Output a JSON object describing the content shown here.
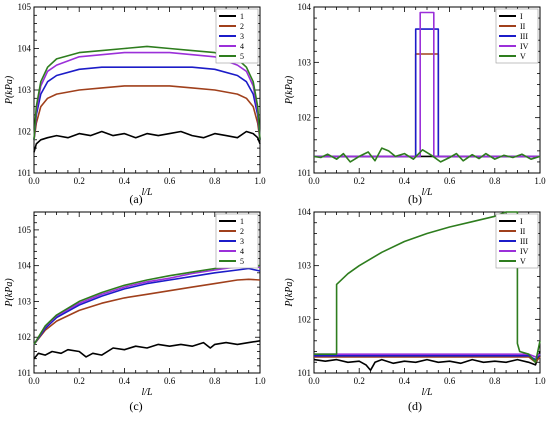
{
  "chart_data": [
    {
      "type": "line",
      "panel_label": "(a)",
      "xlabel": "l/L",
      "ylabel": "P(kPa)",
      "xlim": [
        0,
        1
      ],
      "ylim": [
        101,
        105
      ],
      "xticks": [
        "0.0",
        "0.2",
        "0.4",
        "0.6",
        "0.8",
        "1.0"
      ],
      "yticks": [
        "101",
        "102",
        "103",
        "104",
        "105"
      ],
      "legend_position": "top-right",
      "series": [
        {
          "name": "1",
          "color": "#000000",
          "x": [
            0,
            0.01,
            0.03,
            0.06,
            0.1,
            0.15,
            0.2,
            0.25,
            0.3,
            0.35,
            0.4,
            0.45,
            0.5,
            0.55,
            0.6,
            0.65,
            0.7,
            0.75,
            0.8,
            0.85,
            0.9,
            0.94,
            0.97,
            0.99,
            1.0
          ],
          "y": [
            101.5,
            101.7,
            101.8,
            101.85,
            101.9,
            101.85,
            101.95,
            101.9,
            102.0,
            101.9,
            101.95,
            101.85,
            101.95,
            101.9,
            101.95,
            102.0,
            101.9,
            101.85,
            101.95,
            101.9,
            101.85,
            102.0,
            101.95,
            101.85,
            101.7
          ]
        },
        {
          "name": "2",
          "color": "#a0401c",
          "x": [
            0,
            0.01,
            0.03,
            0.06,
            0.1,
            0.2,
            0.3,
            0.4,
            0.5,
            0.6,
            0.7,
            0.8,
            0.9,
            0.94,
            0.97,
            0.99,
            1.0
          ],
          "y": [
            101.8,
            102.2,
            102.6,
            102.8,
            102.9,
            103.0,
            103.05,
            103.1,
            103.1,
            103.1,
            103.05,
            103.0,
            102.9,
            102.8,
            102.6,
            102.2,
            101.8
          ]
        },
        {
          "name": "3",
          "color": "#1c1cc8",
          "x": [
            0,
            0.01,
            0.03,
            0.06,
            0.1,
            0.2,
            0.3,
            0.4,
            0.5,
            0.6,
            0.7,
            0.8,
            0.9,
            0.94,
            0.97,
            0.99,
            1.0
          ],
          "y": [
            101.8,
            102.4,
            102.9,
            103.2,
            103.35,
            103.5,
            103.55,
            103.55,
            103.55,
            103.55,
            103.55,
            103.5,
            103.35,
            103.2,
            102.9,
            102.4,
            101.8
          ]
        },
        {
          "name": "4",
          "color": "#9b30d9",
          "x": [
            0,
            0.01,
            0.03,
            0.06,
            0.1,
            0.2,
            0.3,
            0.4,
            0.5,
            0.6,
            0.7,
            0.8,
            0.9,
            0.94,
            0.97,
            0.99,
            1.0
          ],
          "y": [
            101.8,
            102.5,
            103.1,
            103.45,
            103.6,
            103.8,
            103.85,
            103.9,
            103.9,
            103.9,
            103.85,
            103.8,
            103.6,
            103.45,
            103.1,
            102.5,
            101.8
          ]
        },
        {
          "name": "5",
          "color": "#2e7d1e",
          "x": [
            0,
            0.01,
            0.03,
            0.06,
            0.1,
            0.2,
            0.3,
            0.4,
            0.5,
            0.6,
            0.7,
            0.8,
            0.9,
            0.94,
            0.97,
            0.99,
            1.0
          ],
          "y": [
            101.8,
            102.6,
            103.2,
            103.55,
            103.75,
            103.9,
            103.95,
            104.0,
            104.05,
            104.0,
            103.95,
            103.9,
            103.75,
            103.55,
            103.2,
            102.6,
            101.8
          ]
        }
      ]
    },
    {
      "type": "line",
      "panel_label": "(b)",
      "xlabel": "l/L",
      "ylabel": "P(kPa)",
      "xlim": [
        0,
        1
      ],
      "ylim": [
        101,
        104
      ],
      "xticks": [
        "0.0",
        "0.2",
        "0.4",
        "0.6",
        "0.8",
        "1.0"
      ],
      "yticks": [
        "101",
        "102",
        "103",
        "104"
      ],
      "legend_position": "top-right",
      "series": [
        {
          "name": "I",
          "color": "#000000",
          "x": [
            0,
            0.2,
            0.4,
            0.6,
            0.8,
            1.0
          ],
          "y": [
            101.3,
            101.3,
            101.3,
            101.3,
            101.3,
            101.3
          ]
        },
        {
          "name": "II",
          "color": "#a0401c",
          "x": [
            0,
            0.45,
            0.45,
            0.55,
            0.55,
            1.0
          ],
          "y": [
            101.3,
            101.3,
            103.15,
            103.15,
            101.3,
            101.3
          ]
        },
        {
          "name": "III",
          "color": "#1c1cc8",
          "x": [
            0,
            0.45,
            0.45,
            0.55,
            0.55,
            1.0
          ],
          "y": [
            101.3,
            101.3,
            103.6,
            103.6,
            101.3,
            101.3
          ]
        },
        {
          "name": "IV",
          "color": "#9b30d9",
          "x": [
            0,
            0.47,
            0.47,
            0.53,
            0.53,
            1.0
          ],
          "y": [
            101.3,
            101.3,
            103.9,
            103.9,
            101.3,
            101.3
          ]
        },
        {
          "name": "V",
          "color": "#2e7d1e",
          "x": [
            0,
            0.03,
            0.06,
            0.1,
            0.13,
            0.16,
            0.2,
            0.24,
            0.27,
            0.3,
            0.33,
            0.36,
            0.4,
            0.44,
            0.48,
            0.52,
            0.56,
            0.6,
            0.63,
            0.66,
            0.7,
            0.73,
            0.76,
            0.8,
            0.84,
            0.88,
            0.92,
            0.96,
            1.0
          ],
          "y": [
            101.3,
            101.28,
            101.34,
            101.25,
            101.35,
            101.2,
            101.3,
            101.38,
            101.22,
            101.45,
            101.4,
            101.3,
            101.35,
            101.25,
            101.42,
            101.32,
            101.2,
            101.28,
            101.35,
            101.22,
            101.33,
            101.26,
            101.35,
            101.25,
            101.32,
            101.28,
            101.34,
            101.25,
            101.3
          ]
        }
      ]
    },
    {
      "type": "line",
      "panel_label": "(c)",
      "xlabel": "l/L",
      "ylabel": "P(kPa)",
      "xlim": [
        0,
        1
      ],
      "ylim": [
        101,
        105.5
      ],
      "xticks": [
        "0.0",
        "0.2",
        "0.4",
        "0.6",
        "0.8",
        "1.0"
      ],
      "yticks": [
        "101",
        "102",
        "103",
        "104",
        "105"
      ],
      "legend_position": "top-right",
      "series": [
        {
          "name": "1",
          "color": "#000000",
          "x": [
            0,
            0.02,
            0.05,
            0.08,
            0.12,
            0.15,
            0.2,
            0.23,
            0.26,
            0.3,
            0.35,
            0.4,
            0.45,
            0.5,
            0.55,
            0.6,
            0.65,
            0.7,
            0.75,
            0.78,
            0.8,
            0.85,
            0.9,
            0.95,
            1.0
          ],
          "y": [
            101.4,
            101.55,
            101.5,
            101.6,
            101.55,
            101.65,
            101.6,
            101.45,
            101.55,
            101.5,
            101.7,
            101.65,
            101.75,
            101.7,
            101.8,
            101.75,
            101.8,
            101.75,
            101.85,
            101.7,
            101.8,
            101.85,
            101.8,
            101.85,
            101.9
          ]
        },
        {
          "name": "2",
          "color": "#a0401c",
          "x": [
            0,
            0.05,
            0.1,
            0.2,
            0.3,
            0.4,
            0.5,
            0.6,
            0.7,
            0.8,
            0.9,
            0.95,
            1.0
          ],
          "y": [
            101.8,
            102.2,
            102.45,
            102.75,
            102.95,
            103.1,
            103.2,
            103.3,
            103.4,
            103.5,
            103.6,
            103.62,
            103.6
          ]
        },
        {
          "name": "3",
          "color": "#1c1cc8",
          "x": [
            0,
            0.05,
            0.1,
            0.2,
            0.3,
            0.4,
            0.5,
            0.6,
            0.7,
            0.8,
            0.9,
            0.95,
            1.0
          ],
          "y": [
            101.8,
            102.25,
            102.55,
            102.9,
            103.15,
            103.35,
            103.5,
            103.6,
            103.7,
            103.8,
            103.88,
            103.92,
            103.85
          ]
        },
        {
          "name": "4",
          "color": "#9b30d9",
          "x": [
            0,
            0.05,
            0.1,
            0.2,
            0.3,
            0.4,
            0.5,
            0.6,
            0.7,
            0.8,
            0.9,
            0.95,
            1.0
          ],
          "y": [
            101.8,
            102.3,
            102.6,
            102.95,
            103.2,
            103.4,
            103.55,
            103.65,
            103.78,
            103.88,
            103.97,
            104.0,
            103.95
          ]
        },
        {
          "name": "5",
          "color": "#2e7d1e",
          "x": [
            0,
            0.05,
            0.1,
            0.2,
            0.3,
            0.4,
            0.5,
            0.6,
            0.7,
            0.8,
            0.9,
            0.95,
            1.0
          ],
          "y": [
            101.8,
            102.32,
            102.62,
            103.0,
            103.25,
            103.45,
            103.6,
            103.72,
            103.82,
            103.92,
            104.0,
            104.02,
            104.0
          ]
        }
      ]
    },
    {
      "type": "line",
      "panel_label": "(d)",
      "xlabel": "l/L",
      "ylabel": "P(kPa)",
      "xlim": [
        0,
        1
      ],
      "ylim": [
        101,
        104
      ],
      "xticks": [
        "0.0",
        "0.2",
        "0.4",
        "0.6",
        "0.8",
        "1.0"
      ],
      "yticks": [
        "101",
        "102",
        "103",
        "104"
      ],
      "legend_position": "top-right",
      "series": [
        {
          "name": "I",
          "color": "#000000",
          "x": [
            0,
            0.05,
            0.1,
            0.15,
            0.2,
            0.23,
            0.25,
            0.27,
            0.3,
            0.35,
            0.4,
            0.45,
            0.5,
            0.55,
            0.6,
            0.65,
            0.7,
            0.75,
            0.8,
            0.85,
            0.9,
            0.95,
            0.98,
            1.0
          ],
          "y": [
            101.25,
            101.22,
            101.25,
            101.2,
            101.22,
            101.15,
            101.05,
            101.2,
            101.25,
            101.18,
            101.22,
            101.2,
            101.25,
            101.2,
            101.22,
            101.18,
            101.25,
            101.2,
            101.22,
            101.2,
            101.25,
            101.2,
            101.15,
            101.4
          ]
        },
        {
          "name": "II",
          "color": "#a0401c",
          "x": [
            0,
            0.2,
            0.4,
            0.6,
            0.8,
            0.95,
            0.98,
            1.0
          ],
          "y": [
            101.3,
            101.3,
            101.3,
            101.3,
            101.3,
            101.3,
            101.2,
            101.3
          ]
        },
        {
          "name": "III",
          "color": "#1c1cc8",
          "x": [
            0,
            0.2,
            0.4,
            0.6,
            0.8,
            0.95,
            0.98,
            1.0
          ],
          "y": [
            101.32,
            101.32,
            101.32,
            101.32,
            101.32,
            101.32,
            101.25,
            101.35
          ]
        },
        {
          "name": "IV",
          "color": "#9b30d9",
          "x": [
            0,
            0.2,
            0.4,
            0.6,
            0.8,
            0.95,
            0.98,
            1.0
          ],
          "y": [
            101.35,
            101.35,
            101.35,
            101.35,
            101.35,
            101.35,
            101.3,
            101.35
          ]
        },
        {
          "name": "V",
          "color": "#2e7d1e",
          "x": [
            0,
            0.1,
            0.1,
            0.15,
            0.2,
            0.3,
            0.4,
            0.5,
            0.6,
            0.7,
            0.8,
            0.85,
            0.9,
            0.9,
            0.91,
            0.95,
            0.98,
            1.0
          ],
          "y": [
            101.35,
            101.35,
            102.65,
            102.85,
            103.0,
            103.25,
            103.45,
            103.6,
            103.72,
            103.82,
            103.92,
            104.0,
            104.0,
            101.55,
            101.4,
            101.35,
            101.2,
            101.6
          ]
        }
      ]
    }
  ]
}
